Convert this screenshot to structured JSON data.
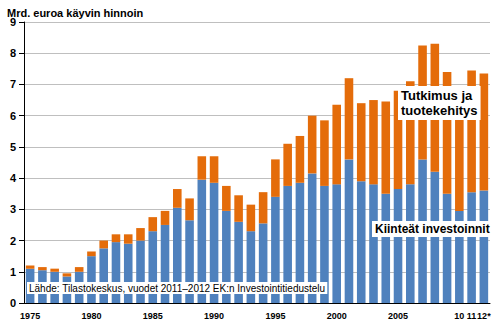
{
  "chart_data": {
    "type": "bar",
    "title": "Mrd. euroa käyvin hinnoin",
    "categories": [
      "1975",
      null,
      null,
      null,
      null,
      "1980",
      null,
      null,
      null,
      null,
      "1985",
      null,
      null,
      null,
      null,
      "1990",
      null,
      null,
      null,
      null,
      "1995",
      null,
      null,
      null,
      null,
      "2000",
      null,
      null,
      null,
      null,
      "2005",
      null,
      null,
      null,
      null,
      "10",
      "11",
      "12*"
    ],
    "series": [
      {
        "name": "Kiinteät investoinnit",
        "color": "#4f81bd",
        "values": [
          1.1,
          1.05,
          1.0,
          0.85,
          1.0,
          1.5,
          1.75,
          1.95,
          1.9,
          2.0,
          2.3,
          2.5,
          3.05,
          2.65,
          3.95,
          3.85,
          2.95,
          2.6,
          2.3,
          2.55,
          3.4,
          3.75,
          3.85,
          4.15,
          3.75,
          3.8,
          4.6,
          3.9,
          3.8,
          3.5,
          3.65,
          3.8,
          4.6,
          4.2,
          3.5,
          2.95,
          3.55,
          3.6
        ]
      },
      {
        "name": "Tutkimus ja tuotekehitys",
        "color": "#e46c0a",
        "values": [
          0.1,
          0.1,
          0.1,
          0.1,
          0.15,
          0.15,
          0.25,
          0.25,
          0.3,
          0.4,
          0.45,
          0.45,
          0.6,
          0.7,
          0.75,
          0.85,
          0.8,
          0.85,
          0.85,
          1.0,
          1.2,
          1.35,
          1.5,
          1.85,
          2.1,
          2.55,
          2.6,
          2.5,
          2.7,
          2.95,
          3.15,
          3.3,
          3.65,
          4.1,
          3.9,
          3.85,
          3.9,
          3.75
        ]
      }
    ],
    "stacked": true,
    "ylim": [
      0,
      9
    ],
    "yticks": [
      0,
      1,
      2,
      3,
      4,
      5,
      6,
      7,
      8,
      9
    ],
    "grid": true,
    "annotations": [
      {
        "text": "Lähde: Tilastokeskus, vuodet 2011–2012 EK:n Investointitiedustelu"
      }
    ]
  }
}
